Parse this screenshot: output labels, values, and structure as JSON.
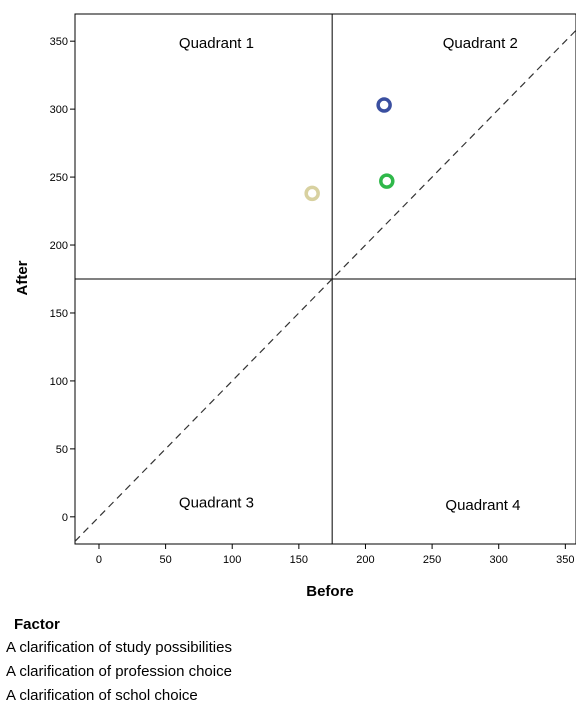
{
  "chart_data": {
    "type": "scatter",
    "xlabel": "Before",
    "ylabel": "After",
    "xlim": [
      -18,
      358
    ],
    "ylim": [
      -20,
      370
    ],
    "x_ticks": [
      0,
      50,
      100,
      150,
      200,
      250,
      300,
      350
    ],
    "y_ticks": [
      0,
      50,
      100,
      150,
      200,
      250,
      300,
      350
    ],
    "reference_lines": {
      "vertical_x": 175,
      "horizontal_y": 175,
      "diagonal": "y = x (dashed)"
    },
    "quadrant_labels": [
      {
        "text": "Quadrant  1",
        "x": 60,
        "y": 345
      },
      {
        "text": "Quadrant  2",
        "x": 258,
        "y": 345
      },
      {
        "text": "Quadrant  3",
        "x": 60,
        "y": 7
      },
      {
        "text": "Quadrant  4",
        "x": 260,
        "y": 5
      }
    ],
    "series": [
      {
        "name": "A clarification of study possibilities",
        "color": "#3a4fa0",
        "points": [
          {
            "x": 214,
            "y": 303
          }
        ]
      },
      {
        "name": "A clarification of profession choice",
        "color": "#2fb84a",
        "points": [
          {
            "x": 216,
            "y": 247
          }
        ]
      },
      {
        "name": "A clarification of schol choice",
        "color": "#d8d1a0",
        "points": [
          {
            "x": 160,
            "y": 238
          }
        ]
      }
    ],
    "legend": {
      "title": "Factor",
      "placement": "bottom-left"
    },
    "grid": false
  },
  "legend": {
    "title": "Factor",
    "items": [
      "A clarification of study possibilities",
      "A clarification of profession choice",
      "A clarification of schol choice"
    ]
  }
}
